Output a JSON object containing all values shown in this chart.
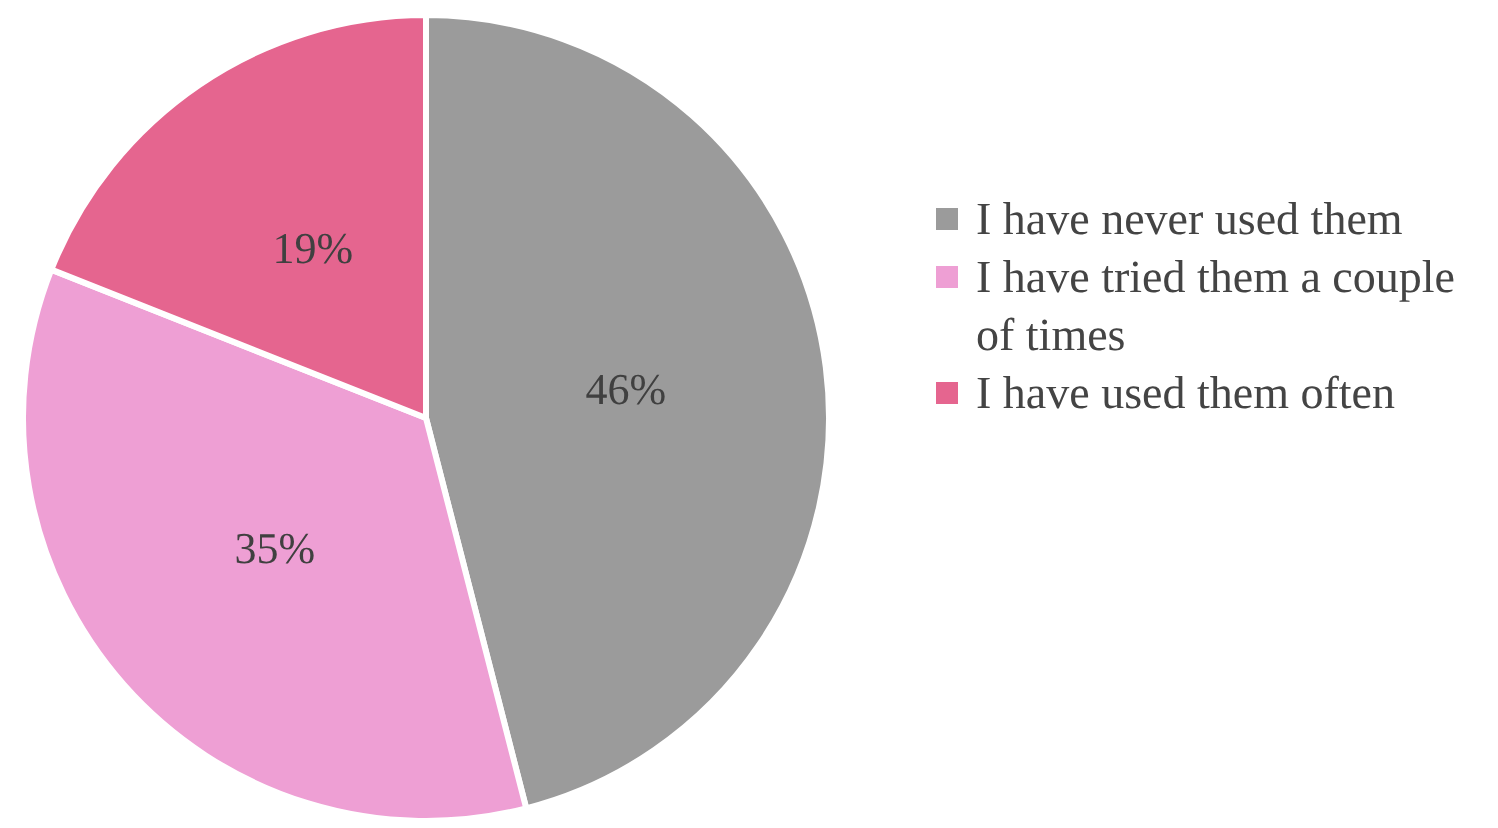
{
  "chart_data": {
    "type": "pie",
    "categories": [
      "I have never used them",
      "I have tried them a couple of times",
      "I have used them often"
    ],
    "values": [
      46,
      35,
      19
    ],
    "colors": [
      "#9b9b9b",
      "#ee9fd4",
      "#e5658f"
    ],
    "value_labels": [
      "46%",
      "35%",
      "19%"
    ],
    "legend": "right"
  }
}
